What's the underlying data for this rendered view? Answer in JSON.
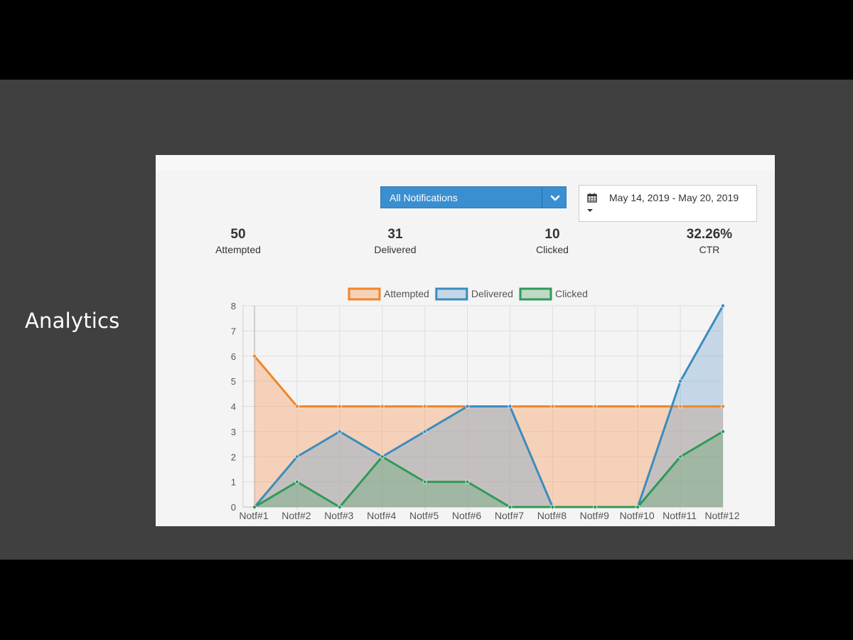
{
  "slide": {
    "title": "Analytics"
  },
  "filters": {
    "notification_select": "All Notifications",
    "date_range": "May 14, 2019 - May 20, 2019"
  },
  "stats": [
    {
      "value": "50",
      "label": "Attempted"
    },
    {
      "value": "31",
      "label": "Delivered"
    },
    {
      "value": "10",
      "label": "Clicked"
    },
    {
      "value": "32.26%",
      "label": "CTR"
    }
  ],
  "icons": [
    "chevron-down-icon",
    "calendar-icon",
    "caret-down-icon"
  ],
  "chart_data": {
    "type": "area",
    "title": "",
    "xlabel": "",
    "ylabel": "",
    "categories": [
      "Notf#1",
      "Notf#2",
      "Notf#3",
      "Notf#4",
      "Notf#5",
      "Notf#6",
      "Notf#7",
      "Notf#8",
      "Notf#9",
      "Notf#10",
      "Notf#11",
      "Notf#12"
    ],
    "ylim": [
      0,
      8
    ],
    "yticks": [
      "0",
      "1",
      "2",
      "3",
      "4",
      "5",
      "6",
      "7",
      "8"
    ],
    "grid": true,
    "legend_position": "top",
    "series": [
      {
        "name": "Attempted",
        "color": "#f0862a",
        "fill": "rgba(245,166,110,0.45)",
        "values": [
          6,
          4,
          4,
          4,
          4,
          4,
          4,
          4,
          4,
          4,
          4,
          4
        ]
      },
      {
        "name": "Delivered",
        "color": "#3b8cbd",
        "fill": "rgba(110,160,205,0.35)",
        "values": [
          0,
          2,
          3,
          2,
          3,
          4,
          4,
          0,
          0,
          0,
          5,
          8
        ]
      },
      {
        "name": "Clicked",
        "color": "#2e9a58",
        "fill": "rgba(90,165,110,0.35)",
        "values": [
          0,
          1,
          0,
          2,
          1,
          1,
          0,
          0,
          0,
          0,
          2,
          3
        ]
      }
    ]
  }
}
